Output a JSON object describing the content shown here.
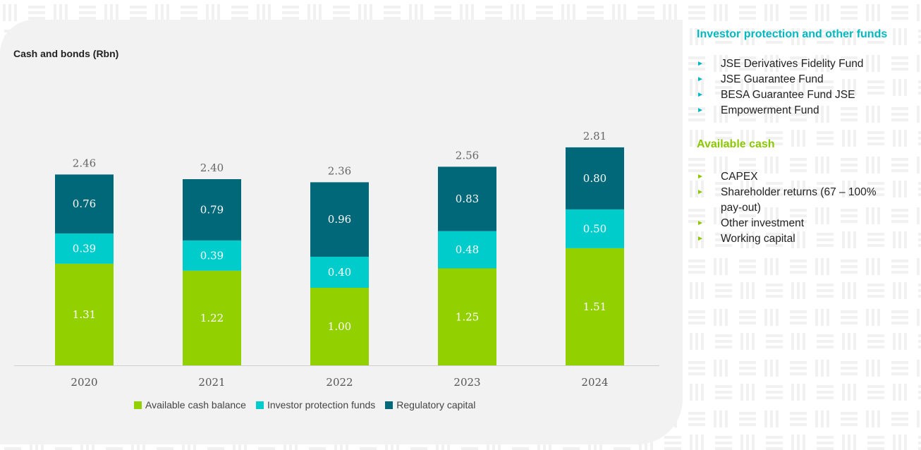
{
  "colors": {
    "cash": "#92d000",
    "investor": "#00cccc",
    "regulatory": "#006878",
    "teal_heading": "#00b8c0",
    "green_heading": "#8cc800",
    "panel": "#f2f2f2"
  },
  "chart_data": {
    "type": "bar",
    "stacked": true,
    "title": "Cash and bonds (Rbn)",
    "categories": [
      "2020",
      "2021",
      "2022",
      "2023",
      "2024"
    ],
    "series": [
      {
        "name": "Available cash balance",
        "values": [
          1.31,
          1.22,
          1.0,
          1.25,
          1.51
        ]
      },
      {
        "name": "Investor protection funds",
        "values": [
          0.39,
          0.39,
          0.4,
          0.48,
          0.5
        ]
      },
      {
        "name": "Regulatory capital",
        "values": [
          0.76,
          0.79,
          0.96,
          0.83,
          0.8
        ]
      }
    ],
    "totals": [
      "2.46",
      "2.40",
      "2.36",
      "2.56",
      "2.81"
    ],
    "value_labels": [
      [
        "1.31",
        "1.22",
        "1.00",
        "1.25",
        "1.51"
      ],
      [
        "0.39",
        "0.39",
        "0.40",
        "0.48",
        "0.50"
      ],
      [
        "0.76",
        "0.79",
        "0.96",
        "0.83",
        "0.80"
      ]
    ],
    "ylim": [
      0,
      3.0
    ],
    "grid": false,
    "legend": "bottom"
  },
  "side": {
    "investor_heading": "Investor protection and other funds",
    "investor_items": [
      "JSE Derivatives Fidelity Fund",
      "JSE Guarantee Fund",
      "BESA Guarantee Fund JSE",
      "Empowerment Fund"
    ],
    "cash_heading": "Available cash",
    "cash_items": [
      "CAPEX",
      "Shareholder returns (67 – 100% pay-out)",
      "Other investment",
      "Working capital"
    ],
    "arrow_icon": "triangle-right-icon",
    "arrow_glyph": "►"
  }
}
